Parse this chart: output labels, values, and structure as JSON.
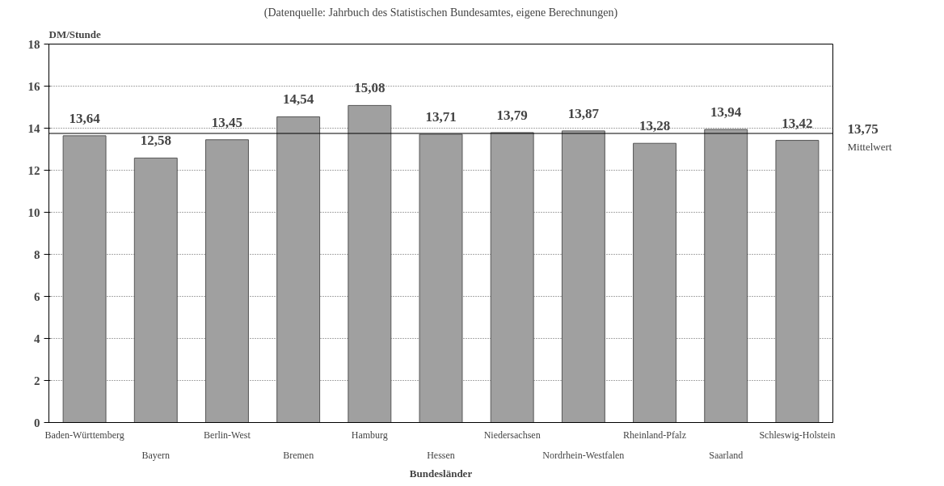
{
  "chart_data": {
    "type": "bar",
    "annotations": [
      "(Datenquelle: Jahrbuch des Statistischen Bundesamtes, eigene Berechnungen)",
      "13,75"
    ],
    "ylabel": "DM/Stunde",
    "xlabel": "Bundesländer",
    "categories": [
      "Baden-Württemberg",
      "Bayern",
      "Berlin-West",
      "Bremen",
      "Hamburg",
      "Hessen",
      "Niedersachsen",
      "Nordrhein-Westfalen",
      "Rheinland-Pfalz",
      "Saarland",
      "Schleswig-Holstein"
    ],
    "values": [
      13.64,
      12.58,
      13.45,
      14.54,
      15.08,
      13.71,
      13.79,
      13.87,
      13.28,
      13.94,
      13.42
    ],
    "value_labels": [
      "13,64",
      "12,58",
      "13,45",
      "14,54",
      "15,08",
      "13,71",
      "13,79",
      "13,87",
      "13,28",
      "13,94",
      "13,42"
    ],
    "color": "#a0a0a0",
    "ylim": [
      0,
      18
    ],
    "yticks": [
      0,
      2,
      4,
      6,
      8,
      10,
      12,
      14,
      16,
      18
    ],
    "grid": "y",
    "ref_lines": [
      {
        "axis": "y",
        "value": 13.75,
        "label": "Mittelwert",
        "color": "#000000"
      }
    ]
  }
}
